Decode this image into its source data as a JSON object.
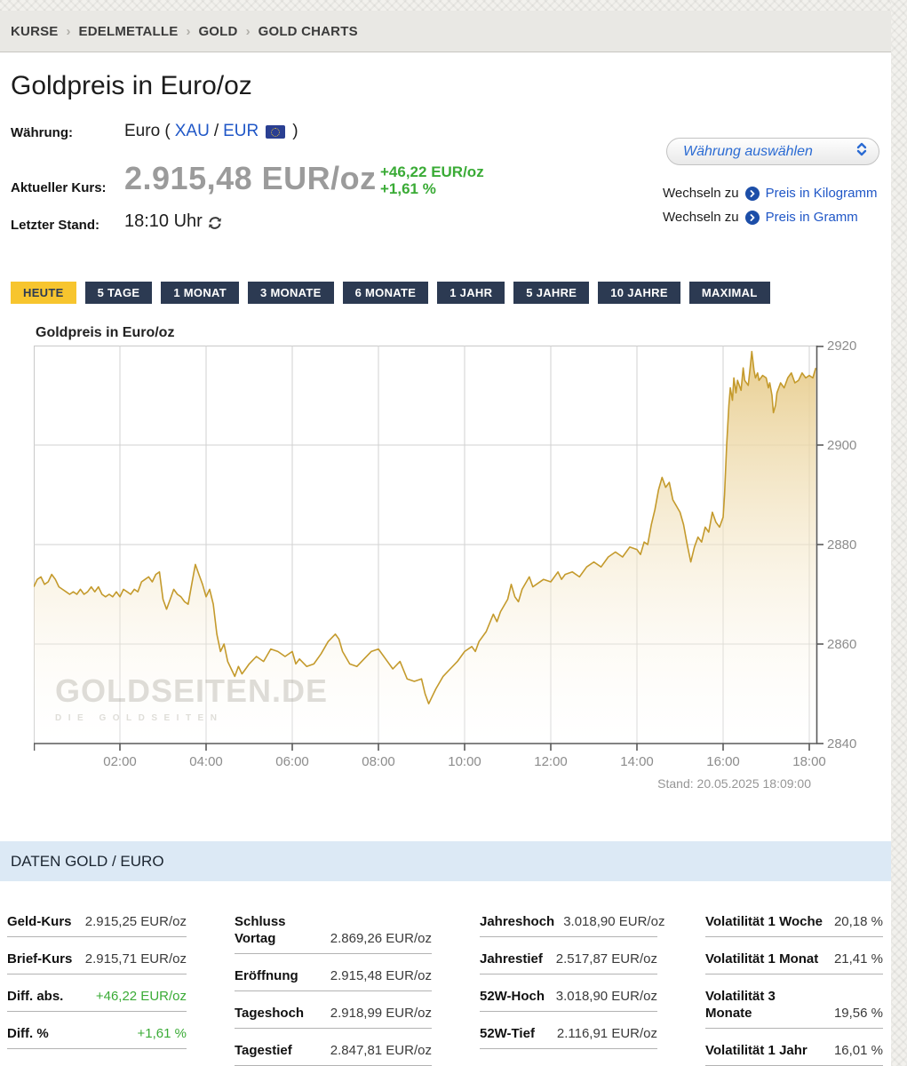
{
  "breadcrumb": {
    "separator": "›",
    "items": [
      "KURSE",
      "EDELMETALLE",
      "GOLD",
      "GOLD CHARTS"
    ]
  },
  "header": {
    "title": "Goldpreis in Euro/oz"
  },
  "quote": {
    "currency_label": "Währung:",
    "currency_prefix": "Euro (",
    "currency_base": "XAU",
    "currency_slash": "/",
    "currency_quote": "EUR",
    "currency_suffix": ")",
    "price_label": "Aktueller Kurs:",
    "price": "2.915,48 EUR/oz",
    "change_abs": "+46,22 EUR/oz",
    "change_pct": "+1,61 %",
    "last_label": "Letzter Stand:",
    "last_value": "18:10 Uhr"
  },
  "currency_select": {
    "placeholder": "Währung auswählen"
  },
  "switch_links": [
    {
      "prefix": "Wechseln zu",
      "label": "Preis in Kilogramm"
    },
    {
      "prefix": "Wechseln zu",
      "label": "Preis in Gramm"
    }
  ],
  "range_tabs": {
    "active_index": 0,
    "items": [
      "HEUTE",
      "5 TAGE",
      "1 MONAT",
      "3 MONATE",
      "6 MONATE",
      "1 JAHR",
      "5 JAHRE",
      "10 JAHRE",
      "MAXIMAL"
    ]
  },
  "chart": {
    "title": "Goldpreis in Euro/oz",
    "stand": "Stand: 20.05.2025 18:09:00",
    "watermark_line1": "GOLDSEITEN.DE",
    "watermark_line2": "DIE GOLDSEITEN"
  },
  "chart_data": {
    "type": "area",
    "title": "Goldpreis in Euro/oz",
    "xlabel": "",
    "ylabel": "",
    "x_unit": "minutes since 00:00",
    "x_range_minutes": [
      0,
      1089
    ],
    "x_ticks": [
      {
        "minute": 120,
        "label": "02:00"
      },
      {
        "minute": 240,
        "label": "04:00"
      },
      {
        "minute": 360,
        "label": "06:00"
      },
      {
        "minute": 480,
        "label": "08:00"
      },
      {
        "minute": 600,
        "label": "10:00"
      },
      {
        "minute": 720,
        "label": "12:00"
      },
      {
        "minute": 840,
        "label": "14:00"
      },
      {
        "minute": 960,
        "label": "16:00"
      },
      {
        "minute": 1080,
        "label": "18:00"
      }
    ],
    "ylim": [
      2840,
      2920
    ],
    "y_ticks": [
      2920,
      2900,
      2880,
      2860,
      2840
    ],
    "grid": true,
    "line_color": "#c49a2c",
    "fill_top_color": "rgba(231,203,137,0.95)",
    "fill_bottom_color": "rgba(255,255,255,0.15)",
    "grid_color": "#d2d2d2",
    "axis_color": "#5a5a5a",
    "points": [
      [
        0,
        2871.5
      ],
      [
        5,
        2873
      ],
      [
        10,
        2873.5
      ],
      [
        15,
        2872
      ],
      [
        20,
        2872.5
      ],
      [
        25,
        2874
      ],
      [
        30,
        2873
      ],
      [
        35,
        2871.5
      ],
      [
        40,
        2871
      ],
      [
        45,
        2870.5
      ],
      [
        50,
        2870
      ],
      [
        55,
        2870.5
      ],
      [
        60,
        2870
      ],
      [
        65,
        2871
      ],
      [
        70,
        2870
      ],
      [
        75,
        2870.5
      ],
      [
        80,
        2871.5
      ],
      [
        85,
        2870.5
      ],
      [
        90,
        2871.5
      ],
      [
        95,
        2870
      ],
      [
        100,
        2869.5
      ],
      [
        105,
        2870
      ],
      [
        110,
        2869.5
      ],
      [
        115,
        2870.5
      ],
      [
        120,
        2869.5
      ],
      [
        125,
        2871
      ],
      [
        130,
        2870.5
      ],
      [
        135,
        2870
      ],
      [
        140,
        2871
      ],
      [
        145,
        2870.5
      ],
      [
        150,
        2872.5
      ],
      [
        155,
        2873
      ],
      [
        160,
        2873.5
      ],
      [
        165,
        2872.5
      ],
      [
        170,
        2874
      ],
      [
        175,
        2874.5
      ],
      [
        180,
        2869
      ],
      [
        185,
        2867
      ],
      [
        190,
        2869
      ],
      [
        195,
        2871
      ],
      [
        200,
        2870
      ],
      [
        205,
        2869.5
      ],
      [
        210,
        2868.5
      ],
      [
        215,
        2868
      ],
      [
        220,
        2872
      ],
      [
        225,
        2876
      ],
      [
        230,
        2874
      ],
      [
        235,
        2872
      ],
      [
        240,
        2869.5
      ],
      [
        245,
        2871
      ],
      [
        250,
        2868
      ],
      [
        255,
        2862
      ],
      [
        260,
        2858.5
      ],
      [
        265,
        2860
      ],
      [
        270,
        2856.5
      ],
      [
        275,
        2855
      ],
      [
        280,
        2853.5
      ],
      [
        285,
        2855.5
      ],
      [
        290,
        2854
      ],
      [
        295,
        2855
      ],
      [
        300,
        2856
      ],
      [
        310,
        2857.5
      ],
      [
        320,
        2856.5
      ],
      [
        330,
        2859
      ],
      [
        340,
        2858.5
      ],
      [
        350,
        2857.5
      ],
      [
        360,
        2858.5
      ],
      [
        365,
        2856
      ],
      [
        370,
        2857
      ],
      [
        380,
        2855.5
      ],
      [
        390,
        2856
      ],
      [
        400,
        2858
      ],
      [
        410,
        2860.5
      ],
      [
        420,
        2862
      ],
      [
        425,
        2861
      ],
      [
        430,
        2858.5
      ],
      [
        440,
        2856
      ],
      [
        450,
        2855.5
      ],
      [
        460,
        2857
      ],
      [
        470,
        2858.5
      ],
      [
        480,
        2859
      ],
      [
        490,
        2857
      ],
      [
        500,
        2855
      ],
      [
        510,
        2856.5
      ],
      [
        520,
        2853
      ],
      [
        530,
        2852.5
      ],
      [
        540,
        2853
      ],
      [
        545,
        2850
      ],
      [
        550,
        2848
      ],
      [
        555,
        2849.5
      ],
      [
        560,
        2851
      ],
      [
        570,
        2853.5
      ],
      [
        580,
        2855
      ],
      [
        590,
        2856.5
      ],
      [
        600,
        2858.5
      ],
      [
        610,
        2859.5
      ],
      [
        615,
        2858.5
      ],
      [
        620,
        2860.5
      ],
      [
        630,
        2862.5
      ],
      [
        640,
        2866
      ],
      [
        645,
        2864.5
      ],
      [
        650,
        2866.5
      ],
      [
        660,
        2869
      ],
      [
        665,
        2872
      ],
      [
        670,
        2869.5
      ],
      [
        675,
        2868.5
      ],
      [
        680,
        2871
      ],
      [
        690,
        2873.5
      ],
      [
        695,
        2871.5
      ],
      [
        700,
        2872
      ],
      [
        710,
        2873
      ],
      [
        720,
        2872.5
      ],
      [
        730,
        2874.5
      ],
      [
        735,
        2873
      ],
      [
        740,
        2874
      ],
      [
        750,
        2874.5
      ],
      [
        760,
        2873.5
      ],
      [
        770,
        2875.5
      ],
      [
        780,
        2876.5
      ],
      [
        790,
        2875.5
      ],
      [
        800,
        2877.5
      ],
      [
        810,
        2878.5
      ],
      [
        820,
        2877.5
      ],
      [
        830,
        2879.5
      ],
      [
        840,
        2879
      ],
      [
        845,
        2878
      ],
      [
        850,
        2880.5
      ],
      [
        855,
        2880
      ],
      [
        860,
        2884
      ],
      [
        865,
        2887
      ],
      [
        870,
        2891
      ],
      [
        875,
        2893.5
      ],
      [
        880,
        2891.5
      ],
      [
        885,
        2892.5
      ],
      [
        890,
        2889
      ],
      [
        900,
        2886.5
      ],
      [
        905,
        2884
      ],
      [
        910,
        2880
      ],
      [
        915,
        2876.5
      ],
      [
        920,
        2879.5
      ],
      [
        925,
        2881.5
      ],
      [
        930,
        2880.5
      ],
      [
        935,
        2883.5
      ],
      [
        940,
        2882.5
      ],
      [
        945,
        2886.5
      ],
      [
        950,
        2884.5
      ],
      [
        955,
        2883.5
      ],
      [
        960,
        2885.5
      ],
      [
        962,
        2890
      ],
      [
        965,
        2900
      ],
      [
        968,
        2908
      ],
      [
        970,
        2911.5
      ],
      [
        973,
        2909
      ],
      [
        975,
        2913.5
      ],
      [
        978,
        2910.5
      ],
      [
        980,
        2913
      ],
      [
        985,
        2911
      ],
      [
        988,
        2915.5
      ],
      [
        990,
        2913
      ],
      [
        995,
        2912
      ],
      [
        998,
        2916
      ],
      [
        1000,
        2918.8
      ],
      [
        1003,
        2915
      ],
      [
        1005,
        2913.5
      ],
      [
        1008,
        2914.5
      ],
      [
        1010,
        2913
      ],
      [
        1015,
        2914
      ],
      [
        1020,
        2913.5
      ],
      [
        1023,
        2911.5
      ],
      [
        1025,
        2912.5
      ],
      [
        1028,
        2910
      ],
      [
        1030,
        2906.5
      ],
      [
        1033,
        2908
      ],
      [
        1035,
        2910.5
      ],
      [
        1040,
        2912.5
      ],
      [
        1045,
        2911.5
      ],
      [
        1050,
        2913.5
      ],
      [
        1055,
        2914.5
      ],
      [
        1060,
        2912.5
      ],
      [
        1065,
        2913
      ],
      [
        1070,
        2914.5
      ],
      [
        1075,
        2913.5
      ],
      [
        1080,
        2914
      ],
      [
        1085,
        2913.5
      ],
      [
        1089,
        2915.5
      ]
    ]
  },
  "data_section": {
    "header": "DATEN GOLD / EURO",
    "columns": [
      [
        {
          "label": "Geld-Kurs",
          "value": "2.915,25 EUR/oz"
        },
        {
          "label": "Brief-Kurs",
          "value": "2.915,71 EUR/oz"
        },
        {
          "label": "Diff. abs.",
          "value": "+46,22 EUR/oz",
          "highlight": true
        },
        {
          "label": "Diff. %",
          "value": "+1,61 %",
          "highlight": true
        }
      ],
      [
        {
          "label": "Schluss Vortag",
          "value": "2.869,26 EUR/oz"
        },
        {
          "label": "Eröffnung",
          "value": "2.915,48 EUR/oz"
        },
        {
          "label": "Tageshoch",
          "value": "2.918,99 EUR/oz"
        },
        {
          "label": "Tagestief",
          "value": "2.847,81 EUR/oz"
        }
      ],
      [
        {
          "label": "Jahreshoch",
          "value": "3.018,90 EUR/oz"
        },
        {
          "label": "Jahrestief",
          "value": "2.517,87 EUR/oz"
        },
        {
          "label": "52W-Hoch",
          "value": "3.018,90 EUR/oz"
        },
        {
          "label": "52W-Tief",
          "value": "2.116,91 EUR/oz"
        }
      ],
      [
        {
          "label": "Volatilität 1 Woche",
          "value": "20,18 %"
        },
        {
          "label": "Volatilität 1 Monat",
          "value": "21,41 %"
        },
        {
          "label": "Volatilität 3 Monate",
          "value": "19,56 %"
        },
        {
          "label": "Volatilität 1 Jahr",
          "value": "16,01 %"
        }
      ]
    ]
  },
  "colors": {
    "accent_yellow": "#f7c52e",
    "tab_navy": "#2c3a52",
    "link_blue": "#2057c7",
    "positive_green": "#3aab36",
    "daten_header_bg": "#dce9f5"
  }
}
